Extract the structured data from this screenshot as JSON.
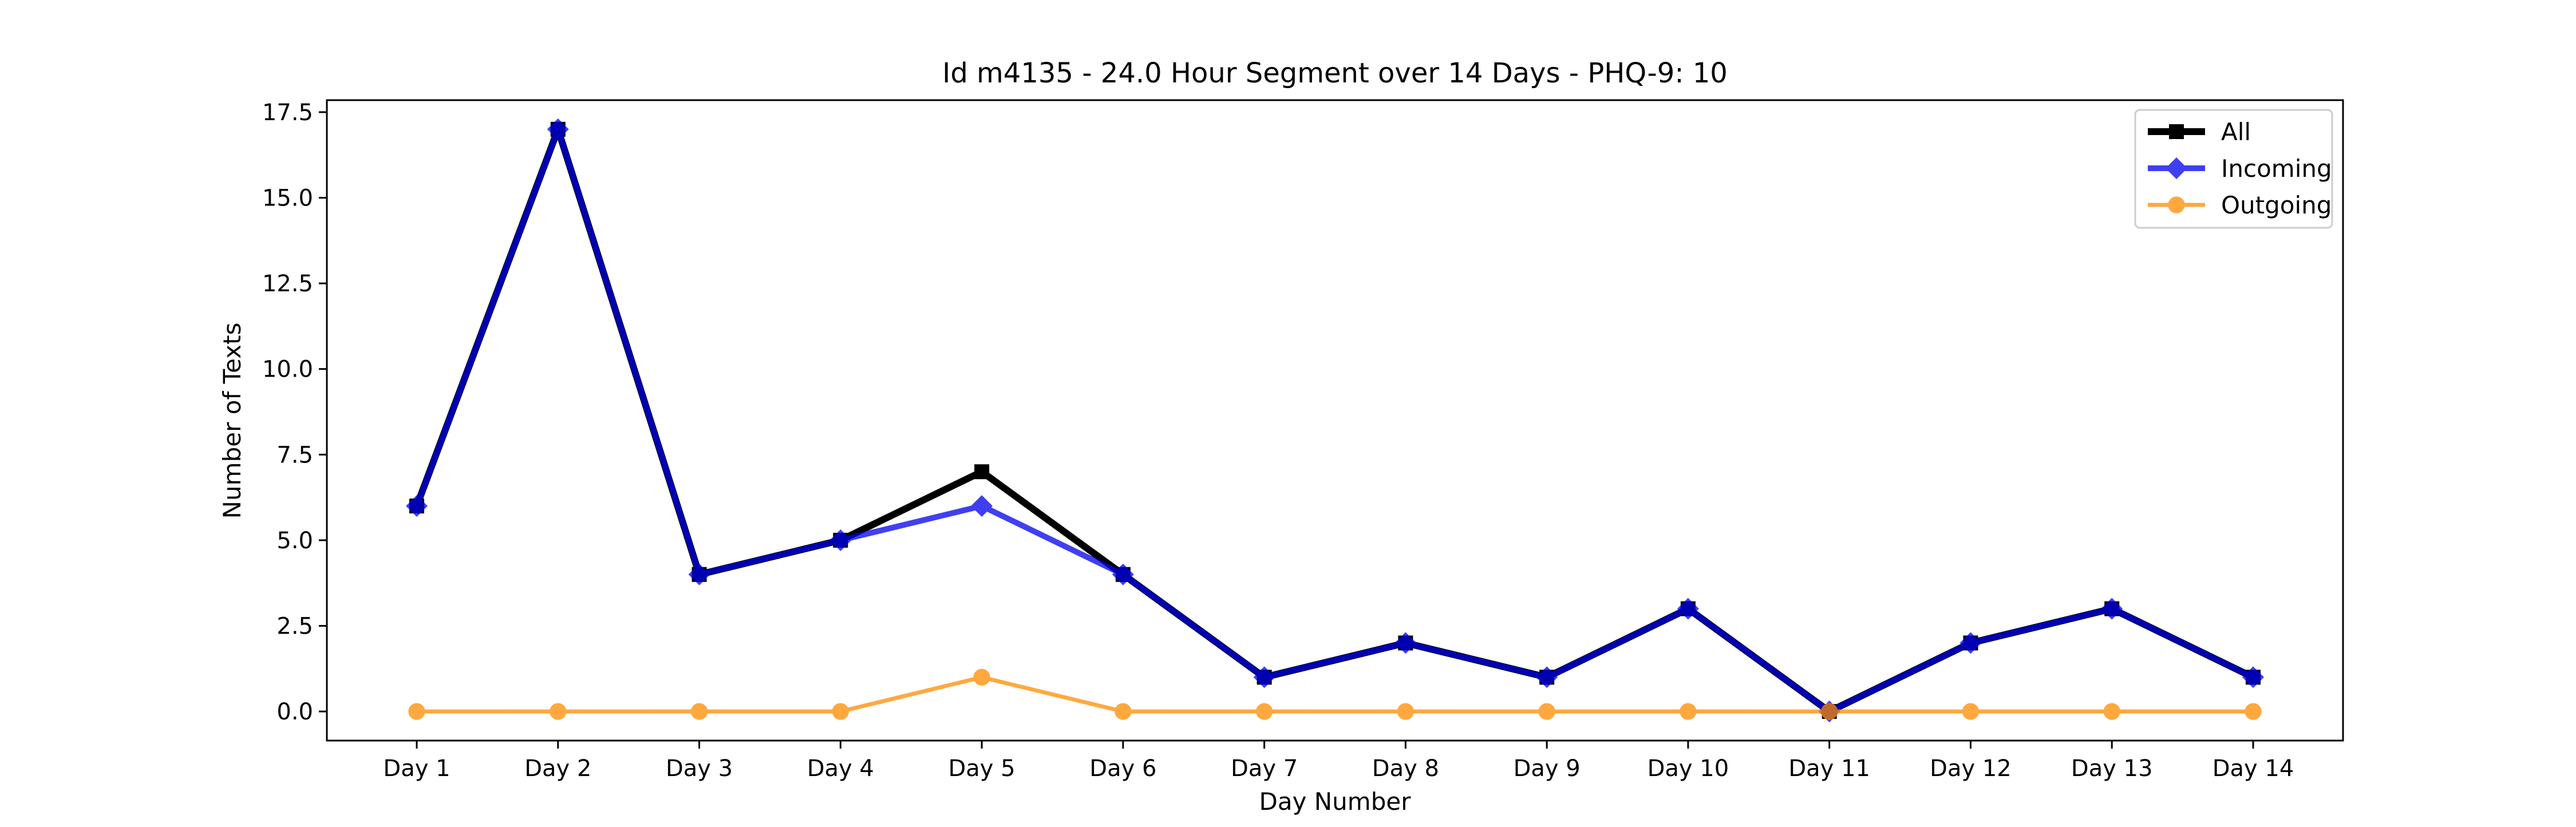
{
  "chart_data": {
    "type": "line",
    "title": "Id m4135 - 24.0 Hour Segment over 14 Days - PHQ-9: 10",
    "xlabel": "Day Number",
    "ylabel": "Number of Texts",
    "categories": [
      "Day 1",
      "Day 2",
      "Day 3",
      "Day 4",
      "Day 5",
      "Day 6",
      "Day 7",
      "Day 8",
      "Day 9",
      "Day 10",
      "Day 11",
      "Day 12",
      "Day 13",
      "Day 14"
    ],
    "ylim": [
      -0.85,
      17.85
    ],
    "yticks": [
      "0.0",
      "2.5",
      "5.0",
      "7.5",
      "10.0",
      "12.5",
      "15.0",
      "17.5"
    ],
    "ytick_values": [
      0,
      2.5,
      5,
      7.5,
      10,
      12.5,
      15,
      17.5
    ],
    "grid": false,
    "legend_position": "top-right",
    "series": [
      {
        "name": "All",
        "color": "#000000",
        "marker": "square",
        "values": [
          6,
          17,
          4,
          5,
          7,
          4,
          1,
          2,
          1,
          3,
          0,
          2,
          3,
          1
        ]
      },
      {
        "name": "Incoming",
        "color": "#0000ee",
        "marker": "diamond",
        "values": [
          6,
          17,
          4,
          5,
          6,
          4,
          1,
          2,
          1,
          3,
          0,
          2,
          3,
          1
        ]
      },
      {
        "name": "Outgoing",
        "color": "#ff8c00",
        "marker": "circle",
        "values": [
          0,
          0,
          0,
          0,
          1,
          0,
          0,
          0,
          0,
          0,
          0,
          0,
          0,
          0
        ]
      }
    ]
  }
}
